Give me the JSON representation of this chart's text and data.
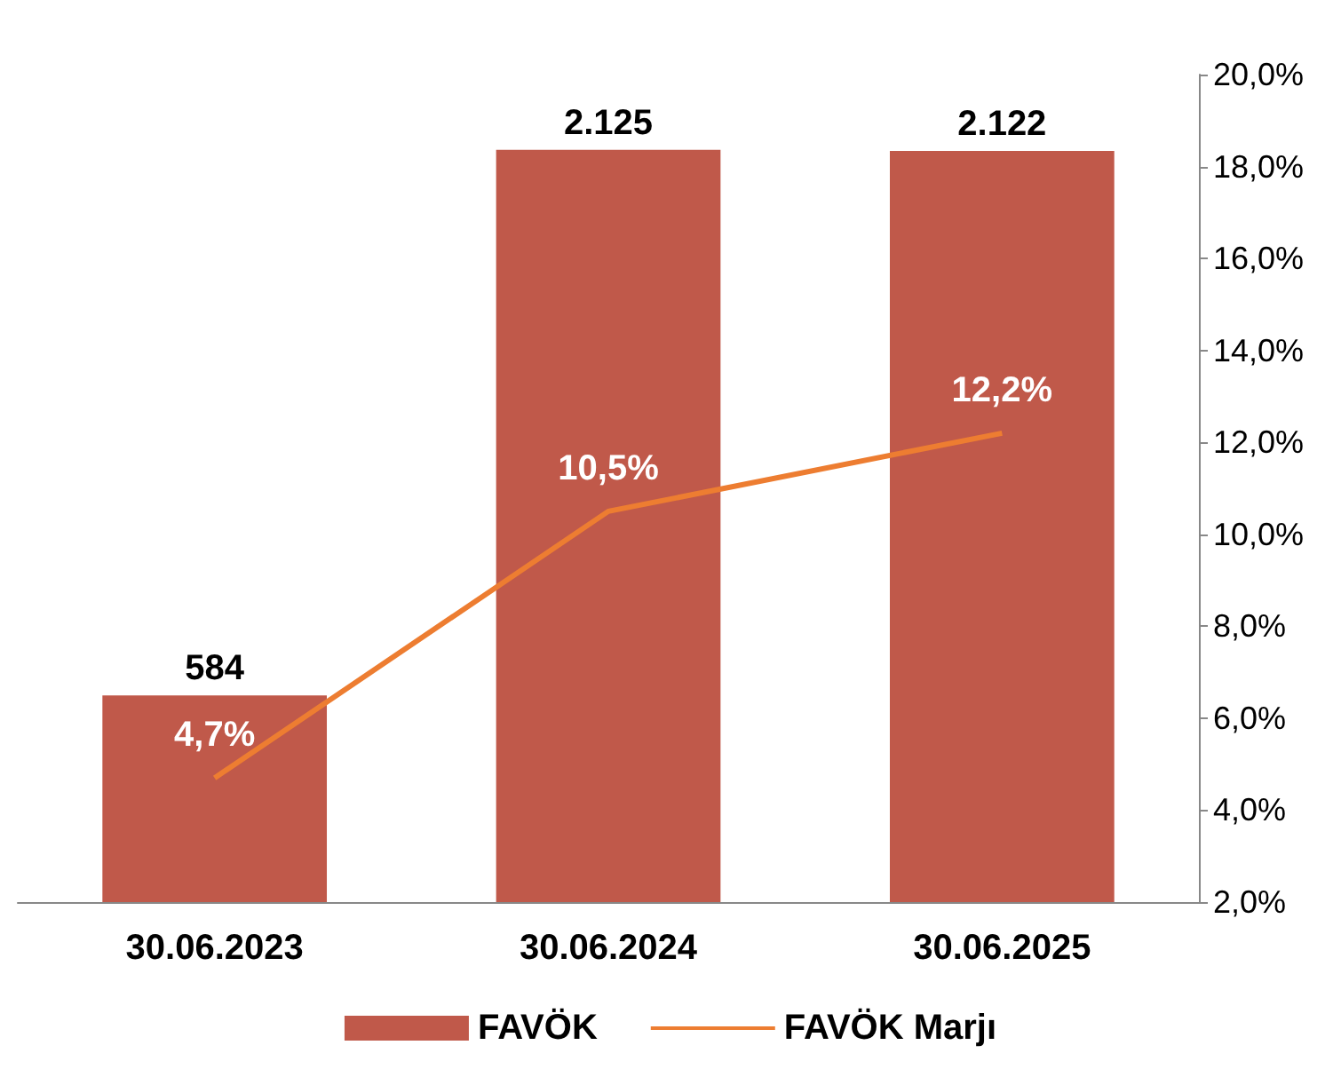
{
  "chart_data": {
    "type": "bar",
    "categories": [
      "30.06.2023",
      "30.06.2024",
      "30.06.2025"
    ],
    "series": [
      {
        "name": "FAVÖK",
        "color": "#c0594a",
        "values": [
          584,
          2125,
          2122
        ],
        "value_labels": [
          "584",
          "2.125",
          "2.122"
        ]
      },
      {
        "name": "FAVÖK Marjı",
        "type": "line",
        "axis": "y2",
        "color": "#ed7d31",
        "values": [
          4.7,
          10.5,
          12.2
        ],
        "value_labels": [
          "4,7%",
          "10,5%",
          "12,2%"
        ],
        "marker": "none"
      }
    ],
    "y2lim": [
      2,
      20
    ],
    "y2ticks": [
      {
        "value": 2,
        "label": "2,0%"
      },
      {
        "value": 4,
        "label": "4,0%"
      },
      {
        "value": 6,
        "label": "6,0%"
      },
      {
        "value": 8,
        "label": "8,0%"
      },
      {
        "value": 10,
        "label": "10,0%"
      },
      {
        "value": 12,
        "label": "12,0%"
      },
      {
        "value": 14,
        "label": "14,0%"
      },
      {
        "value": 16,
        "label": "16,0%"
      },
      {
        "value": 18,
        "label": "18,0%"
      },
      {
        "value": 20,
        "label": "20,0%"
      }
    ],
    "tick_labels": "x",
    "grid": false,
    "legend": "bottom"
  }
}
